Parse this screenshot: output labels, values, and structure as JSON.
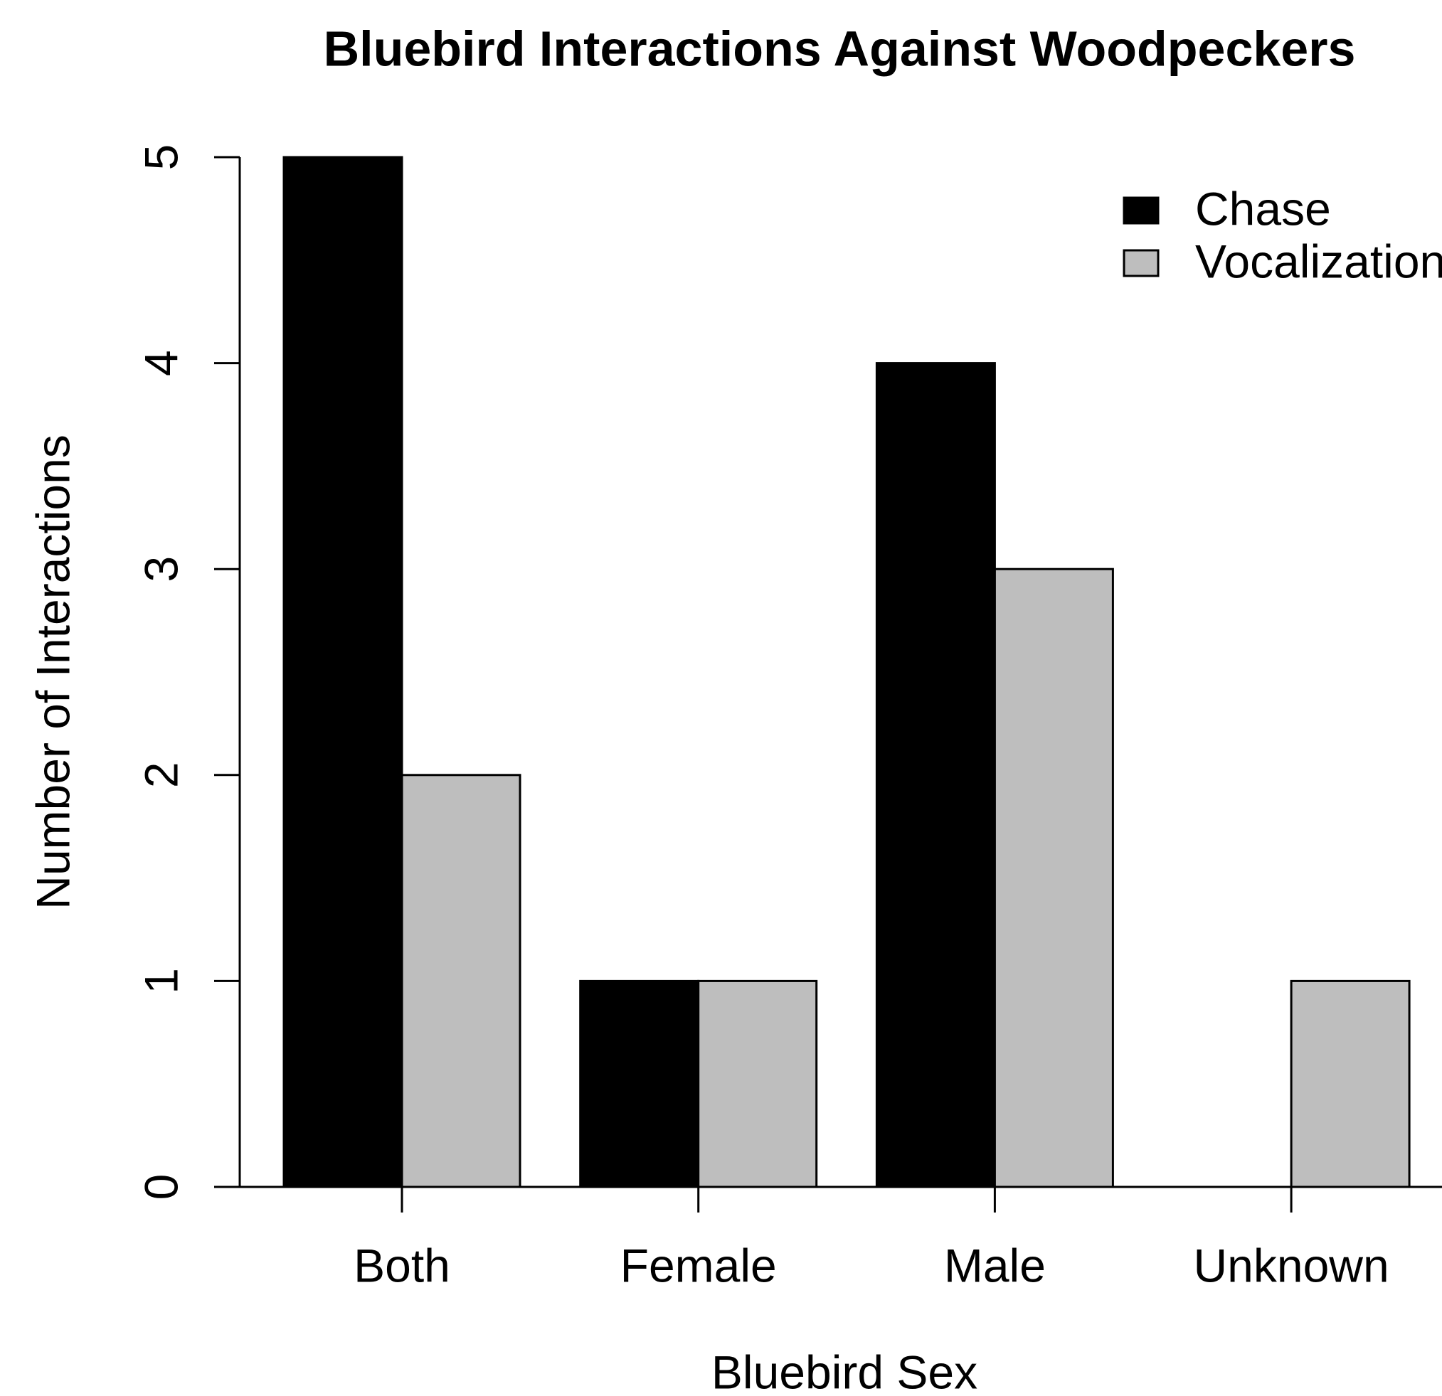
{
  "chart_data": {
    "type": "bar",
    "title": "Bluebird Interactions Against Woodpeckers",
    "x_label": "Bluebird Sex",
    "y_label": "Number of Interactions",
    "categories": [
      "Both",
      "Female",
      "Male",
      "Unknown"
    ],
    "series": [
      {
        "name": "Chase",
        "color": "#000000",
        "values": [
          5,
          1,
          4,
          0
        ]
      },
      {
        "name": "Vocalization",
        "color": "#bebebe",
        "values": [
          2,
          1,
          3,
          1
        ]
      }
    ],
    "ylim": [
      0,
      5
    ],
    "yticks": [
      0,
      1,
      2,
      3,
      4,
      5
    ],
    "grid": false,
    "legend": "top-right"
  }
}
